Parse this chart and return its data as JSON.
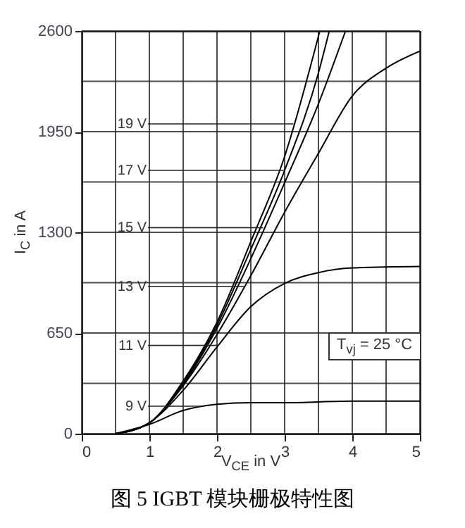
{
  "chart_data": {
    "type": "line",
    "title": "图 5 IGBT 模块栅极特性图",
    "xlabel": "V$_{CE}$ in V",
    "ylabel": "I$_{C}$ in A",
    "xlim": [
      0,
      5
    ],
    "ylim": [
      0,
      2600
    ],
    "xticks": [
      0,
      {
        "value": 0.5,
        "label": null
      },
      1,
      {
        "value": 1.5,
        "label": null
      },
      2,
      {
        "value": 2.5,
        "label": null
      },
      3,
      {
        "value": 3.5,
        "label": null
      },
      4,
      {
        "value": 4.5,
        "label": null
      },
      5
    ],
    "yticks": [
      0,
      {
        "value": 325,
        "label": null
      },
      650,
      {
        "value": 975,
        "label": null
      },
      1300,
      {
        "value": 1625,
        "label": null
      },
      1950,
      {
        "value": 2275,
        "label": null
      },
      2600
    ],
    "grid": true,
    "legend": false,
    "marker": "none",
    "line_style": "solid",
    "series": [
      {
        "color": "#000000",
        "x": [
          0.5,
          1,
          1.5,
          2,
          2.5,
          3,
          4,
          5
        ],
        "values": [
          0,
          60,
          150,
          190,
          200,
          200,
          210,
          210
        ]
      },
      {
        "color": "#000000",
        "x": [
          0.5,
          1,
          1.5,
          2,
          2.5,
          3,
          3.5,
          4,
          5
        ],
        "values": [
          0,
          70,
          280,
          560,
          820,
          970,
          1040,
          1070,
          1080
        ]
      },
      {
        "color": "#000000",
        "x": [
          0.5,
          1,
          1.5,
          2,
          2.5,
          3,
          3.5,
          4,
          4.5,
          5
        ],
        "values": [
          0,
          70,
          310,
          640,
          1020,
          1430,
          1810,
          2180,
          2360,
          2470
        ]
      },
      {
        "color": "#000000",
        "x": [
          0.5,
          1,
          1.5,
          2,
          2.5,
          3,
          3.5,
          3.9
        ],
        "values": [
          0,
          70,
          320,
          680,
          1130,
          1620,
          2130,
          2600
        ]
      },
      {
        "color": "#000000",
        "x": [
          0.5,
          1,
          1.5,
          2,
          2.5,
          3,
          3.5,
          3.66
        ],
        "values": [
          0,
          70,
          330,
          700,
          1190,
          1700,
          2330,
          2600
        ]
      },
      {
        "color": "#000000",
        "x": [
          0.5,
          1,
          1.5,
          2,
          2.5,
          3,
          3.52
        ],
        "values": [
          0,
          70,
          340,
          720,
          1240,
          1790,
          2600
        ]
      }
    ],
    "annotations": [
      {
        "text": "19 V",
        "x": 3.13,
        "y": 2000
      },
      {
        "text": "17 V",
        "x": 3.0,
        "y": 1700
      },
      {
        "text": "15 V",
        "x": 2.68,
        "y": 1330
      },
      {
        "text": "13 V",
        "x": 2.4,
        "y": 951
      },
      {
        "text": "11 V",
        "x": 2.02,
        "y": 570
      },
      {
        "text": "9 V",
        "x": 1.78,
        "y": 177
      },
      "T$_{vj}$ = 25 °C"
    ]
  }
}
